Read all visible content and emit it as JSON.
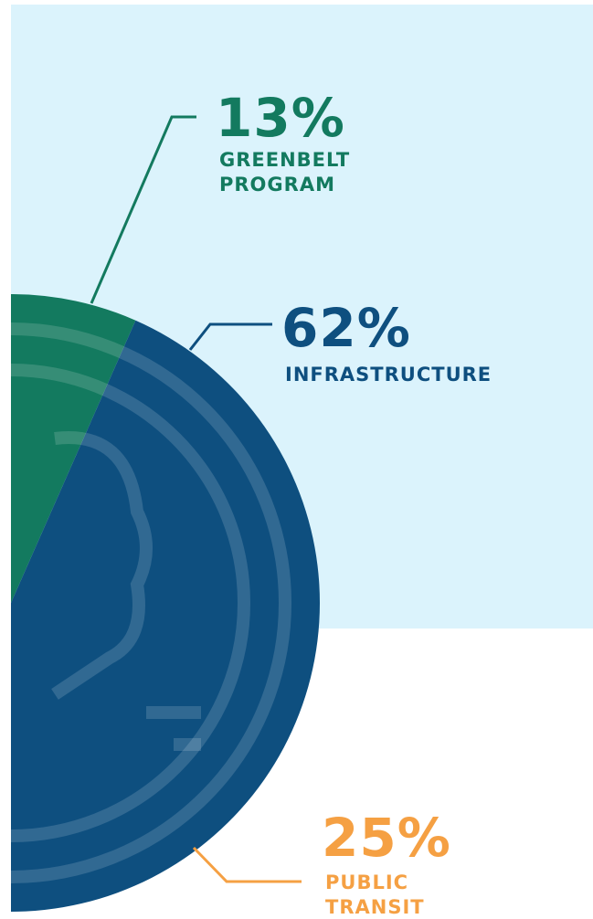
{
  "chart_data": {
    "type": "pie",
    "categories": [
      "GREENBELT PROGRAM",
      "INFRASTRUCTURE",
      "PUBLIC TRANSIT"
    ],
    "values": [
      13,
      62,
      25
    ],
    "value_labels": [
      "13%",
      "62%",
      "25%"
    ],
    "colors": [
      "#137a5f",
      "#0e4f7f",
      "#f5a043"
    ]
  }
}
